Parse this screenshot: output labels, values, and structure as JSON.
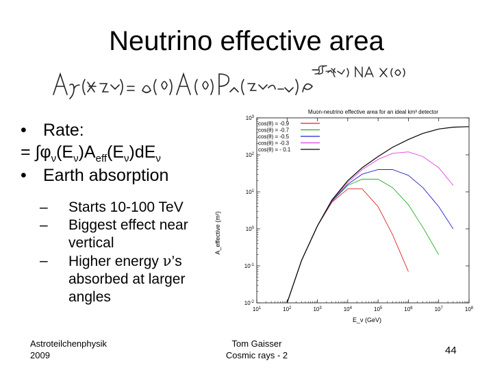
{
  "slide": {
    "title": "Neutrino effective area",
    "bullets": [
      "Rate:",
      "Earth absorption"
    ],
    "rate_formula": {
      "prefix": "= ∫φ",
      "sub1": "ν",
      "mid1": "(E",
      "sub2": "ν",
      "mid2": ")A",
      "sub3": "eff",
      "mid3": "(E",
      "sub4": "ν",
      "suffix": ")dE",
      "sub5": "ν"
    },
    "subbullets": [
      {
        "text": "Starts 10-100 TeV"
      },
      {
        "text": "Biggest effect near vertical"
      },
      {
        "pre": "Higher energy ",
        "greek": "ν",
        "post": "’s absorbed at larger angles"
      }
    ],
    "footer": {
      "left_line1": "Astroteilchenphysik",
      "left_line2": "2009",
      "center_line1": "Tom Gaisser",
      "center_line2": "Cosmic rays - 2",
      "page": "44"
    }
  },
  "chart_data": {
    "type": "line",
    "title": "Muon-neutrino effective area for an ideal km³ detector",
    "xlabel": "E_ν (GeV)",
    "ylabel": "A_effective (m²)",
    "xscale": "log",
    "yscale": "log",
    "xlim": [
      10,
      100000000
    ],
    "ylim": [
      0.01,
      1000
    ],
    "xticks": [
      {
        "base": "10",
        "exp": "1"
      },
      {
        "base": "10",
        "exp": "2"
      },
      {
        "base": "10",
        "exp": "3"
      },
      {
        "base": "10",
        "exp": "4"
      },
      {
        "base": "10",
        "exp": "5"
      },
      {
        "base": "10",
        "exp": "6"
      },
      {
        "base": "10",
        "exp": "7"
      },
      {
        "base": "10",
        "exp": "8"
      }
    ],
    "yticks": [
      {
        "base": "10",
        "exp": "-2"
      },
      {
        "base": "10",
        "exp": "-1"
      },
      {
        "base": "10",
        "exp": "0"
      },
      {
        "base": "10",
        "exp": "1"
      },
      {
        "base": "10",
        "exp": "2"
      },
      {
        "base": "10",
        "exp": "3"
      }
    ],
    "legend_position": "top-left",
    "series": [
      {
        "name": "cos(θ) = -0.9",
        "color": "#e02020",
        "x": [
          100,
          300,
          1000,
          3000,
          10000,
          30000,
          100000,
          300000,
          1000000
        ],
        "y": [
          0.01,
          0.14,
          1.2,
          5.2,
          12,
          12,
          4,
          0.7,
          0.07
        ]
      },
      {
        "name": "cos(θ) = -0.7",
        "color": "#20b020",
        "x": [
          100,
          300,
          1000,
          3000,
          10000,
          30000,
          100000,
          300000,
          1000000,
          3000000,
          10000000
        ],
        "y": [
          0.01,
          0.14,
          1.2,
          5.5,
          15,
          22,
          22,
          13,
          4.5,
          1.1,
          0.2
        ]
      },
      {
        "name": "cos(θ) = -0.5",
        "color": "#2222cc",
        "x": [
          100,
          300,
          1000,
          3000,
          10000,
          30000,
          100000,
          300000,
          1000000,
          3000000,
          10000000,
          30000000
        ],
        "y": [
          0.01,
          0.14,
          1.2,
          5.6,
          16,
          30,
          40,
          40,
          28,
          13,
          4,
          1
        ]
      },
      {
        "name": "cos(θ) = -0.3",
        "color": "#e040e0",
        "x": [
          100,
          300,
          1000,
          3000,
          10000,
          30000,
          100000,
          300000,
          1000000,
          3000000,
          10000000,
          30000000
        ],
        "y": [
          0.01,
          0.14,
          1.2,
          5.8,
          18,
          40,
          75,
          110,
          120,
          90,
          45,
          15
        ]
      },
      {
        "name": "cos(θ) = - 0.1",
        "color": "#000000",
        "x": [
          100,
          300,
          1000,
          3000,
          10000,
          30000,
          100000,
          300000,
          1000000,
          3000000,
          10000000,
          30000000,
          100000000
        ],
        "y": [
          0.01,
          0.14,
          1.2,
          6,
          20,
          45,
          90,
          160,
          260,
          380,
          500,
          560,
          580
        ]
      }
    ]
  }
}
